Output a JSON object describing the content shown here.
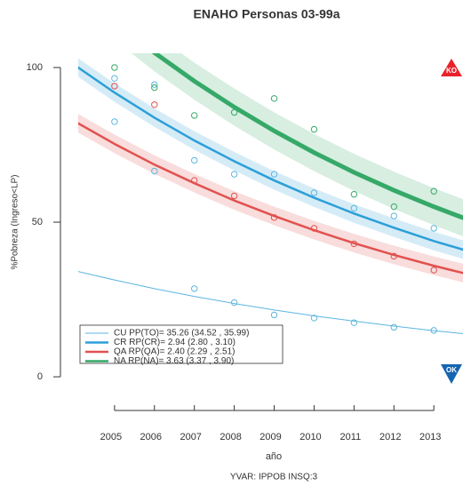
{
  "chart_data": {
    "type": "fit-scatter",
    "title": "ENAHO Personas 03-99a",
    "xlabel": "año",
    "ylabel": "%Pobreza (Ingreso<LP)",
    "caption": "YVAR: IPPOB INSQ:3",
    "xlim": [
      2004.09,
      2013.73
    ],
    "ylim": [
      -4,
      104.6
    ],
    "xticks": [
      2005,
      2006,
      2007,
      2008,
      2009,
      2010,
      2011,
      2012,
      2013
    ],
    "yticks": [
      0,
      50,
      100
    ],
    "fit_x": [
      2004,
      2005,
      2006,
      2007,
      2008,
      2009,
      2010,
      2011,
      2012,
      2013,
      2014
    ],
    "series": [
      {
        "name": "CU PP(TO)= 35.26 (34.52 , 35.99)",
        "color": "#5cb6e0",
        "band": 0,
        "fit": [
          34.3,
          31.3,
          28.5,
          26.0,
          23.7,
          21.6,
          19.7,
          18.0,
          16.4,
          14.9,
          13.6
        ],
        "points_x": [
          2007,
          2008,
          2009,
          2010,
          2011,
          2012,
          2013
        ],
        "points_y": [
          28.5,
          24,
          20,
          19,
          17.5,
          16,
          15
        ]
      },
      {
        "name": "CR RP(CR)= 2.94 (2.80 , 3.10)",
        "color": "#2c9fd8",
        "band": 3,
        "fit": [
          100.8,
          91.9,
          83.8,
          76.4,
          69.7,
          63.5,
          57.9,
          52.8,
          48.2,
          43.9,
          40.1
        ],
        "points_x": [
          2005,
          2005,
          2006,
          2006,
          2007,
          2008,
          2009,
          2010,
          2011,
          2012,
          2013
        ],
        "points_y": [
          96.5,
          82.5,
          94.5,
          66.5,
          70,
          65.5,
          65.5,
          59.5,
          54.5,
          52,
          48
        ]
      },
      {
        "name": "QA RP(QA)= 2.40 (2.29 , 2.51)",
        "color": "#e0524f",
        "band": 3,
        "fit": [
          82.6,
          75.3,
          68.6,
          62.6,
          57.0,
          52.0,
          47.4,
          43.2,
          39.4,
          35.9,
          32.7
        ],
        "points_x": [
          2005,
          2006,
          2007,
          2008,
          2009,
          2010,
          2011,
          2012,
          2013
        ],
        "points_y": [
          94,
          88,
          63.5,
          58.5,
          51.5,
          48,
          43,
          39,
          34.5
        ]
      },
      {
        "name": "NA RP(NA)= 3.63 (3.37 , 3.90)",
        "color": "#36a968",
        "band": 6,
        "fit": [
          125.9,
          114.9,
          104.8,
          95.6,
          87.2,
          79.5,
          72.5,
          66.1,
          60.3,
          55.0,
          50.1
        ],
        "points_x": [
          2005,
          2006,
          2007,
          2008,
          2009,
          2010,
          2011,
          2012,
          2013
        ],
        "points_y": [
          100,
          93.5,
          84.5,
          85.5,
          90,
          80,
          59,
          55,
          60
        ]
      }
    ],
    "annotations": [
      "KO",
      "OK"
    ]
  }
}
